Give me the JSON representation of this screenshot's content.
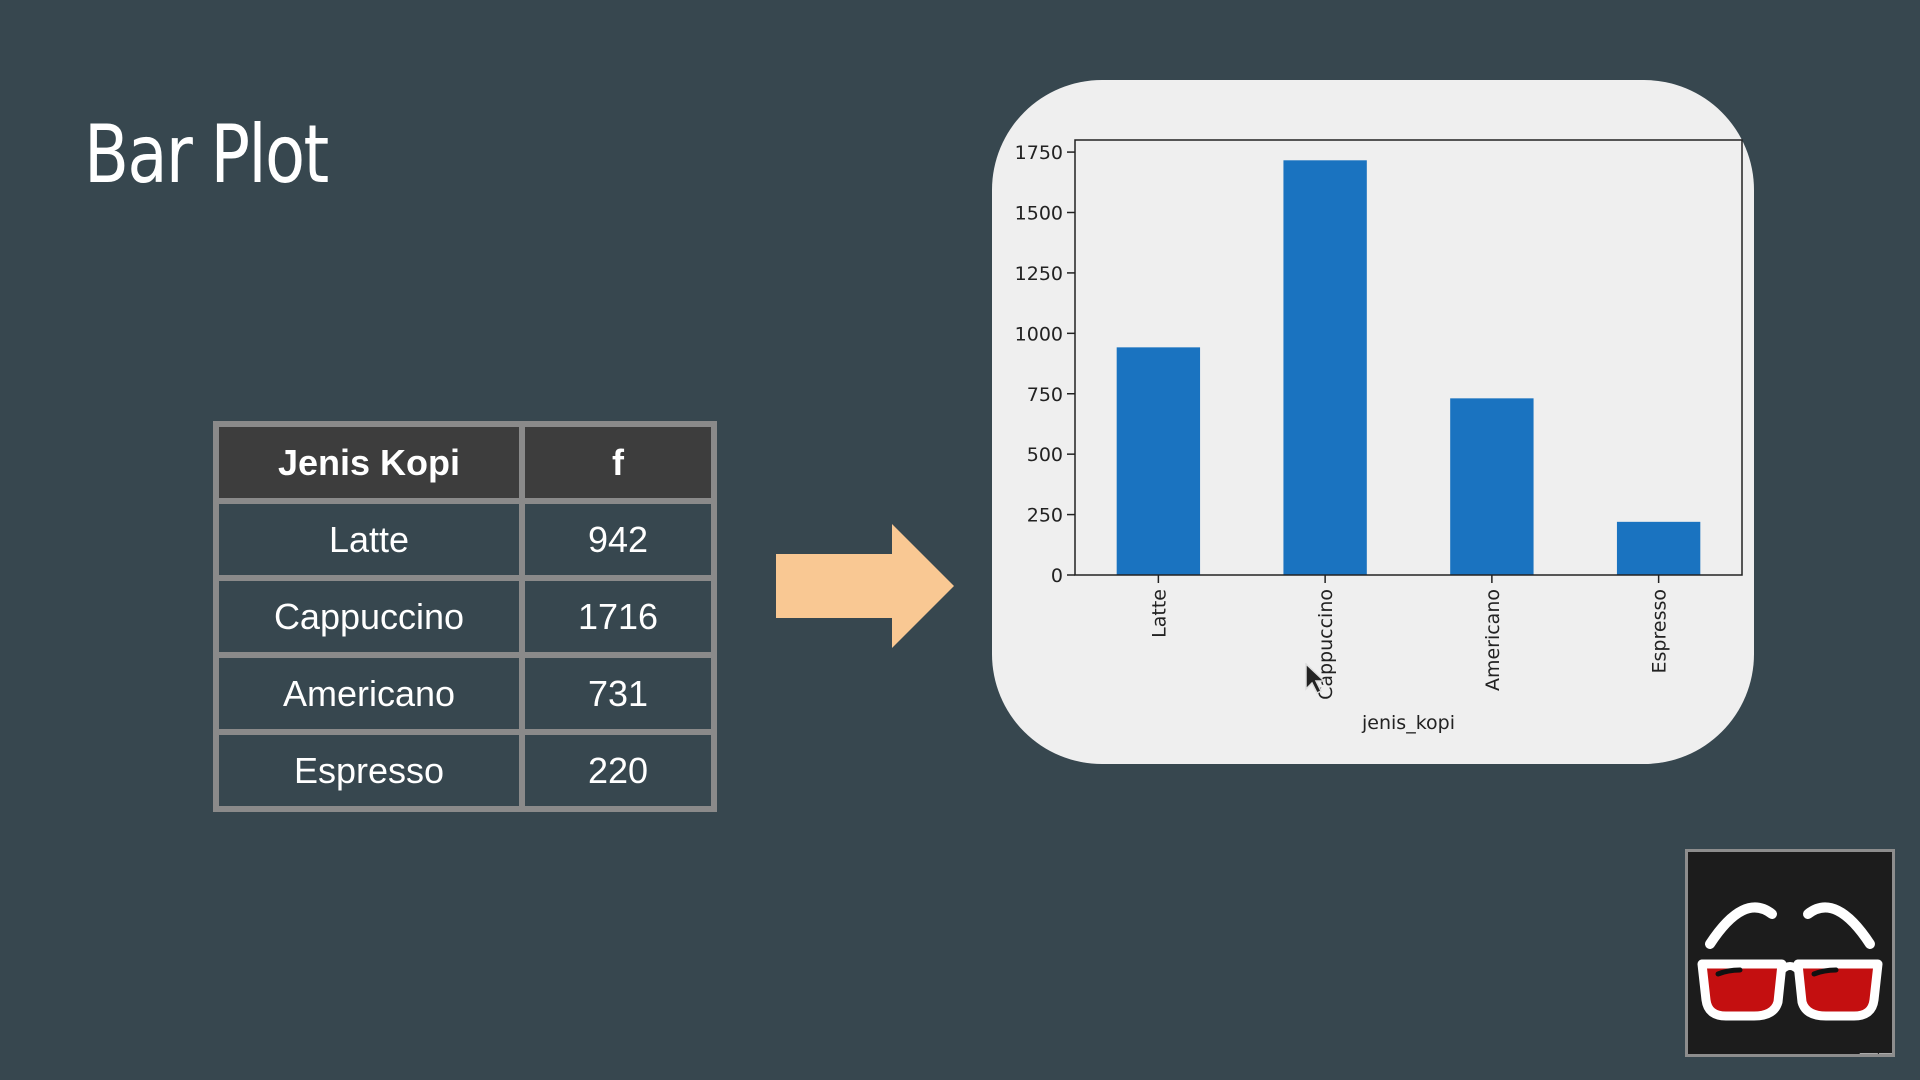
{
  "slide": {
    "title": "Bar Plot"
  },
  "table": {
    "headers": [
      "Jenis Kopi",
      "f"
    ],
    "rows": [
      {
        "category": "Latte",
        "f": "942"
      },
      {
        "category": "Cappuccino",
        "f": "1716"
      },
      {
        "category": "Americano",
        "f": "731"
      },
      {
        "category": "Espresso",
        "f": "220"
      }
    ]
  },
  "chart_data": {
    "type": "bar",
    "categories": [
      "Latte",
      "Cappuccino",
      "Americano",
      "Espresso"
    ],
    "values": [
      942,
      1716,
      731,
      220
    ],
    "title": "",
    "xlabel": "jenis_kopi",
    "ylabel": "",
    "ylim": [
      0,
      1800
    ],
    "yticks": [
      0,
      250,
      500,
      750,
      1000,
      1250,
      1500,
      1750
    ],
    "grid": false,
    "bar_color": "#1a73c0"
  },
  "colors": {
    "background": "#37474f",
    "arrow": "#f9c893",
    "card": "#efefef"
  },
  "icons": {
    "arrow": "right-arrow-icon",
    "logo": "glasses-icon"
  }
}
